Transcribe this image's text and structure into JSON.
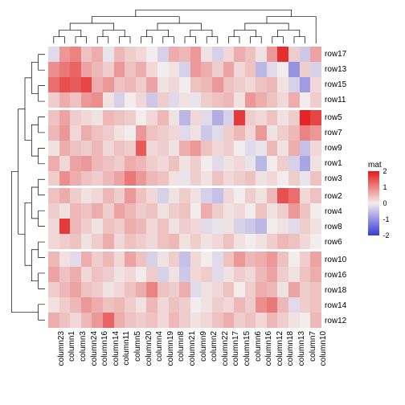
{
  "chart": {
    "type": "heatmap",
    "row_labels": [
      "row17",
      "row13",
      "row15",
      "row11",
      "row5",
      "row7",
      "row9",
      "row1",
      "row3",
      "row2",
      "row4",
      "row8",
      "row6",
      "row10",
      "row16",
      "row18",
      "row14",
      "row12"
    ],
    "col_labels": [
      "column23",
      "column1",
      "column3",
      "column24",
      "column16",
      "column14",
      "column11",
      "column5",
      "column20",
      "column4",
      "column19",
      "column8",
      "column21",
      "column9",
      "column2",
      "column22",
      "column17",
      "column15",
      "column6",
      "column16",
      "column12",
      "column18",
      "column13",
      "column7",
      "column10"
    ],
    "min": -2,
    "max": 2,
    "values": [
      [
        -0.2,
        0.8,
        1.0,
        0.4,
        0.6,
        -0.1,
        0.5,
        0.3,
        0.2,
        0.0,
        -0.3,
        0.6,
        0.5,
        0.8,
        0.1,
        -0.3,
        0.2,
        0.6,
        0.4,
        0.1,
        0.8,
        1.8,
        0.3,
        -0.4,
        0.7
      ],
      [
        0.9,
        1.1,
        1.3,
        0.7,
        0.5,
        0.3,
        0.8,
        0.4,
        0.6,
        0.2,
        0.0,
        0.1,
        -0.3,
        0.8,
        0.6,
        0.3,
        0.7,
        0.2,
        0.4,
        -0.6,
        -0.2,
        0.0,
        -1.0,
        0.3,
        -0.3
      ],
      [
        1.2,
        1.5,
        1.4,
        1.6,
        0.6,
        0.8,
        0.4,
        0.5,
        0.3,
        0.7,
        0.1,
        0.2,
        0.0,
        0.4,
        0.5,
        0.8,
        0.4,
        0.3,
        0.2,
        0.4,
        0.5,
        0.1,
        -0.3,
        -0.9,
        0.2
      ],
      [
        0.3,
        0.6,
        0.4,
        0.8,
        0.9,
        0.1,
        -0.3,
        0.0,
        0.2,
        -0.4,
        0.3,
        -0.2,
        0.1,
        -0.1,
        0.3,
        0.4,
        0.5,
        0.1,
        0.8,
        0.6,
        0.4,
        0.2,
        0.6,
        0.0,
        0.3
      ],
      [
        0.4,
        0.7,
        0.3,
        0.2,
        0.1,
        0.5,
        0.4,
        0.3,
        0.0,
        0.2,
        0.5,
        0.1,
        -0.6,
        0.2,
        -0.2,
        -0.7,
        -0.3,
        1.7,
        0.3,
        0.2,
        0.4,
        0.1,
        0.3,
        1.9,
        1.6
      ],
      [
        0.5,
        0.8,
        0.2,
        0.6,
        0.4,
        0.3,
        0.1,
        0.0,
        0.8,
        0.4,
        0.3,
        0.2,
        -0.2,
        0.1,
        -0.4,
        -0.2,
        0.3,
        0.5,
        0.2,
        0.8,
        0.1,
        0.3,
        0.5,
        1.0,
        0.8
      ],
      [
        0.1,
        0.6,
        0.4,
        0.3,
        0.5,
        0.2,
        0.4,
        0.3,
        1.4,
        0.2,
        0.3,
        0.1,
        0.6,
        0.8,
        0.4,
        0.2,
        0.3,
        0.0,
        -0.2,
        -0.1,
        0.5,
        0.1,
        0.6,
        -0.5,
        0.2
      ],
      [
        0.6,
        0.2,
        0.7,
        0.8,
        0.5,
        0.4,
        0.3,
        0.6,
        0.5,
        0.3,
        0.2,
        0.4,
        0.1,
        0.3,
        0.0,
        -0.2,
        0.1,
        0.2,
        -0.1,
        -0.6,
        0.0,
        0.3,
        -0.3,
        -0.8,
        0.1
      ],
      [
        0.3,
        0.9,
        0.6,
        0.4,
        0.3,
        0.5,
        0.7,
        1.1,
        0.8,
        0.5,
        0.4,
        0.1,
        -0.1,
        0.3,
        0.1,
        0.4,
        0.2,
        0.3,
        0.4,
        0.1,
        0.2,
        0.0,
        0.3,
        -0.1,
        0.4
      ],
      [
        0.4,
        0.6,
        0.3,
        0.1,
        0.2,
        0.5,
        0.3,
        0.8,
        0.4,
        0.2,
        -0.3,
        0.1,
        0.3,
        0.1,
        -0.3,
        -0.5,
        0.2,
        0.0,
        0.3,
        0.1,
        0.5,
        1.5,
        1.2,
        0.2,
        0.4
      ],
      [
        0.3,
        0.1,
        0.5,
        0.4,
        0.6,
        0.3,
        0.7,
        0.5,
        0.3,
        0.4,
        0.1,
        0.3,
        0.4,
        0.0,
        0.6,
        0.3,
        0.1,
        0.2,
        0.0,
        0.4,
        0.1,
        0.3,
        0.8,
        0.4,
        0.0
      ],
      [
        0.2,
        1.7,
        0.5,
        0.3,
        0.1,
        0.4,
        0.3,
        0.6,
        0.5,
        0.2,
        0.4,
        0.1,
        0.3,
        0.2,
        -0.2,
        -0.1,
        0.1,
        -0.3,
        -0.4,
        -0.6,
        0.0,
        0.1,
        -0.2,
        0.3,
        0.1
      ],
      [
        0.2,
        0.3,
        0.4,
        0.1,
        0.3,
        0.6,
        0.2,
        0.4,
        0.3,
        0.2,
        0.4,
        0.5,
        0.1,
        0.3,
        0.1,
        0.2,
        0.4,
        0.1,
        0.0,
        0.1,
        0.3,
        0.5,
        0.4,
        0.2,
        0.0
      ],
      [
        0.5,
        0.1,
        -0.2,
        0.6,
        0.3,
        0.5,
        0.2,
        0.7,
        0.4,
        -0.3,
        0.1,
        0.3,
        -0.5,
        0.2,
        0.0,
        -0.2,
        0.4,
        0.8,
        0.5,
        0.6,
        0.8,
        0.4,
        0.0,
        0.3,
        0.7
      ],
      [
        0.7,
        0.4,
        0.6,
        0.2,
        0.4,
        0.3,
        0.1,
        0.2,
        0.0,
        0.3,
        -0.3,
        0.1,
        -0.4,
        0.2,
        0.3,
        -0.2,
        0.1,
        0.3,
        0.2,
        0.5,
        0.7,
        0.3,
        0.1,
        0.4,
        0.6
      ],
      [
        0.3,
        0.5,
        0.7,
        0.4,
        0.3,
        0.1,
        0.2,
        0.4,
        0.6,
        1.0,
        0.4,
        0.3,
        0.6,
        -0.2,
        0.1,
        0.2,
        0.4,
        0.0,
        0.3,
        0.6,
        0.5,
        0.1,
        0.7,
        0.3,
        0.4
      ],
      [
        0.1,
        0.3,
        0.5,
        0.8,
        0.6,
        0.4,
        0.5,
        0.3,
        0.1,
        0.5,
        0.2,
        0.4,
        0.3,
        0.0,
        0.1,
        0.3,
        0.2,
        0.5,
        0.3,
        0.9,
        1.1,
        0.5,
        -0.2,
        0.3,
        0.4
      ],
      [
        0.6,
        0.4,
        0.2,
        0.5,
        0.8,
        1.3,
        0.6,
        0.4,
        0.3,
        0.4,
        0.2,
        0.5,
        0.3,
        0.1,
        0.2,
        0.4,
        0.6,
        0.3,
        0.4,
        0.2,
        0.5,
        0.3,
        0.1,
        0.0,
        0.5
      ]
    ],
    "row_groups": [
      0,
      4,
      9,
      13,
      18
    ],
    "legend": {
      "title": "mat",
      "ticks": [
        2,
        1,
        0,
        -1,
        -2
      ]
    },
    "colors": {
      "low": "#3a3ad6",
      "mid": "#f2ecec",
      "high": "#e41a1a",
      "gap": "#ffffff",
      "text": "#000000",
      "dendro": "#000000"
    },
    "dendro_stroke": 0.7,
    "row_label_fontsize": 10,
    "col_label_fontsize": 10,
    "legend_fontsize": 9
  }
}
